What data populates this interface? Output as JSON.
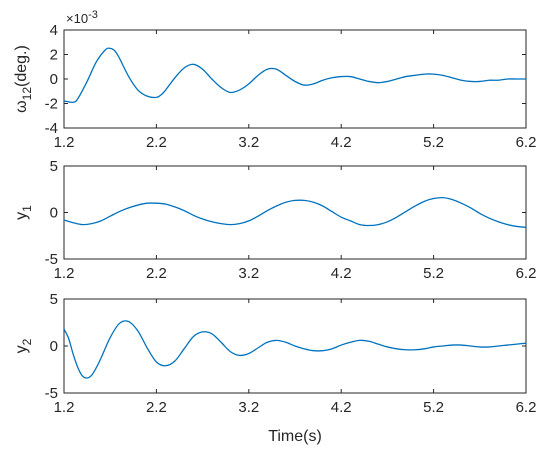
{
  "chart_data": [
    {
      "type": "line",
      "ylabel_main": "ω",
      "ylabel_sub": "12",
      "ylabel_suffix": "(deg.)",
      "y_multiplier": "×10",
      "y_multiplier_exp": "-3",
      "xlim": [
        1.2,
        6.2
      ],
      "ylim": [
        -4,
        4
      ],
      "xticks": [
        "1.2",
        "2.2",
        "3.2",
        "4.2",
        "5.2",
        "6.2"
      ],
      "yticks": [
        "4",
        "2",
        "0",
        "-2",
        "-4"
      ],
      "color": "#0072BD",
      "series": [
        {
          "x": [
            1.2,
            1.3,
            1.35,
            1.45,
            1.55,
            1.65,
            1.7,
            1.75,
            1.8,
            1.9,
            2.0,
            2.1,
            2.2,
            2.25,
            2.3,
            2.4,
            2.5,
            2.6,
            2.7,
            2.8,
            2.9,
            3.0,
            3.1,
            3.2,
            3.3,
            3.4,
            3.5,
            3.6,
            3.7,
            3.8,
            3.9,
            4.0,
            4.1,
            4.2,
            4.3,
            4.4,
            4.5,
            4.6,
            4.7,
            4.8,
            4.9,
            5.0,
            5.1,
            5.2,
            5.3,
            5.4,
            5.5,
            5.6,
            5.7,
            5.8,
            5.9,
            6.0,
            6.1,
            6.2
          ],
          "y": [
            -1.8,
            -1.9,
            -1.6,
            -0.2,
            1.4,
            2.4,
            2.5,
            2.3,
            1.7,
            0.2,
            -0.9,
            -1.4,
            -1.5,
            -1.3,
            -0.9,
            0.1,
            0.9,
            1.2,
            0.8,
            0.0,
            -0.7,
            -1.1,
            -0.9,
            -0.4,
            0.3,
            0.8,
            0.8,
            0.3,
            -0.2,
            -0.5,
            -0.4,
            -0.1,
            0.1,
            0.2,
            0.2,
            0.0,
            -0.2,
            -0.3,
            -0.2,
            0.0,
            0.2,
            0.3,
            0.4,
            0.4,
            0.3,
            0.1,
            -0.1,
            -0.2,
            -0.2,
            -0.1,
            -0.1,
            0.0,
            0.0,
            0.0
          ]
        }
      ]
    },
    {
      "type": "line",
      "ylabel_main": "y",
      "ylabel_sub": "1",
      "ylabel_suffix": "",
      "xlim": [
        1.2,
        6.2
      ],
      "ylim": [
        -5,
        5
      ],
      "xticks": [
        "1.2",
        "2.2",
        "3.2",
        "4.2",
        "5.2",
        "6.2"
      ],
      "yticks": [
        "5",
        "0",
        "-5"
      ],
      "color": "#0072BD",
      "series": [
        {
          "x": [
            1.2,
            1.3,
            1.4,
            1.5,
            1.6,
            1.7,
            1.8,
            1.9,
            2.0,
            2.1,
            2.2,
            2.3,
            2.4,
            2.5,
            2.6,
            2.7,
            2.8,
            2.9,
            3.0,
            3.1,
            3.2,
            3.3,
            3.4,
            3.5,
            3.6,
            3.7,
            3.8,
            3.9,
            4.0,
            4.1,
            4.2,
            4.3,
            4.4,
            4.5,
            4.6,
            4.7,
            4.8,
            4.9,
            5.0,
            5.1,
            5.2,
            5.3,
            5.4,
            5.5,
            5.6,
            5.7,
            5.8,
            5.9,
            6.0,
            6.1,
            6.2
          ],
          "y": [
            -0.8,
            -1.1,
            -1.3,
            -1.2,
            -0.9,
            -0.4,
            0.1,
            0.5,
            0.8,
            1.0,
            1.0,
            0.9,
            0.6,
            0.2,
            -0.3,
            -0.7,
            -1.0,
            -1.2,
            -1.3,
            -1.2,
            -0.9,
            -0.4,
            0.2,
            0.7,
            1.1,
            1.3,
            1.3,
            1.1,
            0.7,
            0.1,
            -0.5,
            -0.9,
            -1.3,
            -1.4,
            -1.3,
            -1.0,
            -0.5,
            0.1,
            0.7,
            1.2,
            1.5,
            1.6,
            1.4,
            1.0,
            0.5,
            -0.1,
            -0.6,
            -1.0,
            -1.3,
            -1.5,
            -1.6
          ]
        }
      ]
    },
    {
      "type": "line",
      "ylabel_main": "y",
      "ylabel_sub": "2",
      "ylabel_suffix": "",
      "xlabel": "Time(s)",
      "xlim": [
        1.2,
        6.2
      ],
      "ylim": [
        -5,
        5
      ],
      "xticks": [
        "1.2",
        "2.2",
        "3.2",
        "4.2",
        "5.2",
        "6.2"
      ],
      "yticks": [
        "5",
        "0",
        "-5"
      ],
      "color": "#0072BD",
      "series": [
        {
          "x": [
            1.2,
            1.25,
            1.3,
            1.35,
            1.4,
            1.45,
            1.5,
            1.55,
            1.6,
            1.7,
            1.8,
            1.9,
            2.0,
            2.1,
            2.2,
            2.3,
            2.4,
            2.5,
            2.6,
            2.7,
            2.8,
            2.9,
            3.0,
            3.1,
            3.2,
            3.3,
            3.4,
            3.5,
            3.6,
            3.7,
            3.8,
            3.9,
            4.0,
            4.1,
            4.2,
            4.3,
            4.4,
            4.5,
            4.6,
            4.7,
            4.8,
            4.9,
            5.0,
            5.1,
            5.2,
            5.3,
            5.4,
            5.5,
            5.6,
            5.7,
            5.8,
            5.9,
            6.0,
            6.1,
            6.2
          ],
          "y": [
            1.8,
            0.8,
            -0.9,
            -2.3,
            -3.2,
            -3.4,
            -3.1,
            -2.3,
            -1.3,
            0.9,
            2.4,
            2.6,
            1.6,
            -0.2,
            -1.7,
            -2.1,
            -1.6,
            -0.3,
            1.0,
            1.5,
            1.3,
            0.4,
            -0.6,
            -1.0,
            -0.8,
            -0.2,
            0.4,
            0.6,
            0.4,
            0.0,
            -0.3,
            -0.5,
            -0.5,
            -0.3,
            0.1,
            0.4,
            0.6,
            0.5,
            0.2,
            -0.1,
            -0.3,
            -0.4,
            -0.4,
            -0.3,
            -0.1,
            0.0,
            0.1,
            0.1,
            0.0,
            -0.1,
            -0.1,
            0.0,
            0.1,
            0.2,
            0.3
          ]
        }
      ]
    }
  ]
}
